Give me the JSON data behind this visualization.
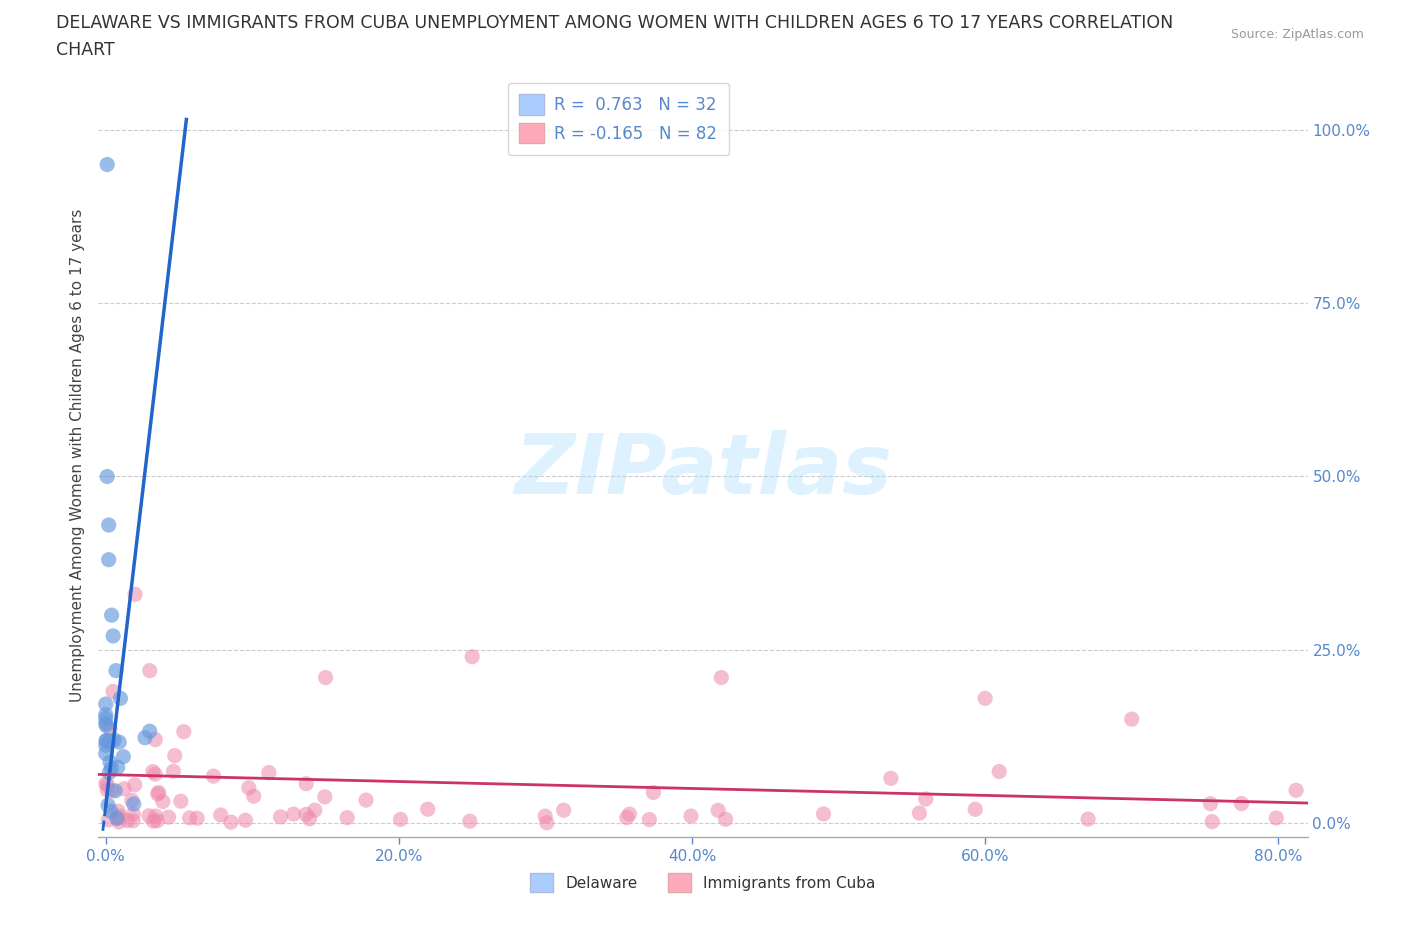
{
  "title_line1": "DELAWARE VS IMMIGRANTS FROM CUBA UNEMPLOYMENT AMONG WOMEN WITH CHILDREN AGES 6 TO 17 YEARS CORRELATION",
  "title_line2": "CHART",
  "source_text": "Source: ZipAtlas.com",
  "ylabel": "Unemployment Among Women with Children Ages 6 to 17 years",
  "xlim": [
    -0.005,
    0.82
  ],
  "ylim": [
    -0.02,
    1.08
  ],
  "x_tick_vals": [
    0.0,
    0.2,
    0.4,
    0.6,
    0.8
  ],
  "x_tick_labels": [
    "0.0%",
    "20.0%",
    "40.0%",
    "60.0%",
    "80.0%"
  ],
  "y_tick_vals": [
    0.0,
    0.25,
    0.5,
    0.75,
    1.0
  ],
  "y_tick_labels": [
    "0.0%",
    "25.0%",
    "50.0%",
    "75.0%",
    "100.0%"
  ],
  "legend_label_del": "R =  0.763   N = 32",
  "legend_label_cuba": "R = -0.165   N = 82",
  "legend_color_del": "#aaccff",
  "legend_color_cuba": "#ffaabb",
  "dot_color_del": "#6699dd",
  "dot_color_cuba": "#ee88aa",
  "trendline_color_del": "#2266cc",
  "trendline_color_cuba": "#cc3366",
  "grid_color": "#cccccc",
  "bg_color": "#ffffff",
  "watermark_text": "ZIPatlas",
  "bottom_legend_del": "Delaware",
  "bottom_legend_cuba": "Immigrants from Cuba",
  "tick_color": "#5588cc",
  "title_color": "#333333",
  "source_color": "#999999"
}
